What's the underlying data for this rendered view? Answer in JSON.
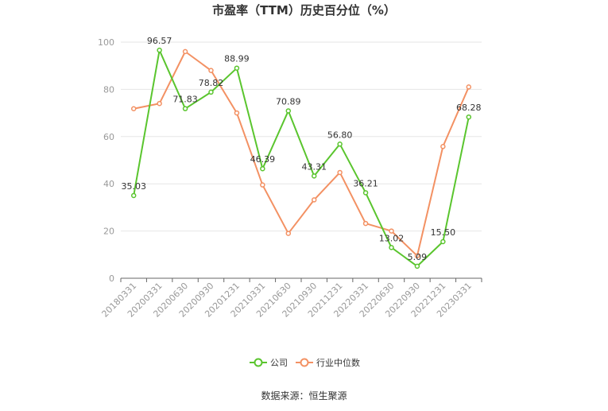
{
  "chart_data": {
    "type": "line",
    "title": "市盈率（TTM）历史百分位（%）",
    "xlabel": "",
    "ylabel": "",
    "ylim": [
      0,
      100
    ],
    "yticks": [
      0,
      20,
      40,
      60,
      80,
      100
    ],
    "grid": true,
    "legend_position": "bottom",
    "categories": [
      "20180331",
      "20200331",
      "20200630",
      "20200930",
      "20201231",
      "20210331",
      "20210630",
      "20210930",
      "20211231",
      "20220331",
      "20220630",
      "20220930",
      "20221231",
      "20230331"
    ],
    "series": [
      {
        "name": "公司",
        "color": "#5ac52e",
        "values": [
          35.03,
          96.57,
          71.83,
          78.82,
          88.99,
          46.39,
          70.89,
          43.31,
          56.8,
          36.21,
          13.02,
          5.09,
          15.5,
          68.28
        ],
        "labels": [
          "35.03",
          "96.57",
          "71.83",
          "78.82",
          "88.99",
          "46.39",
          "70.89",
          "43.31",
          "56.80",
          "36.21",
          "13.02",
          "5.09",
          "15.50",
          "68.28"
        ]
      },
      {
        "name": "行业中位数",
        "color": "#f39163",
        "values": [
          71.8,
          74.0,
          96.0,
          88.0,
          70.0,
          39.5,
          19.0,
          33.2,
          44.8,
          23.2,
          20.0,
          9.5,
          55.8,
          81.0
        ]
      }
    ]
  },
  "source": "数据来源：恒生聚源"
}
